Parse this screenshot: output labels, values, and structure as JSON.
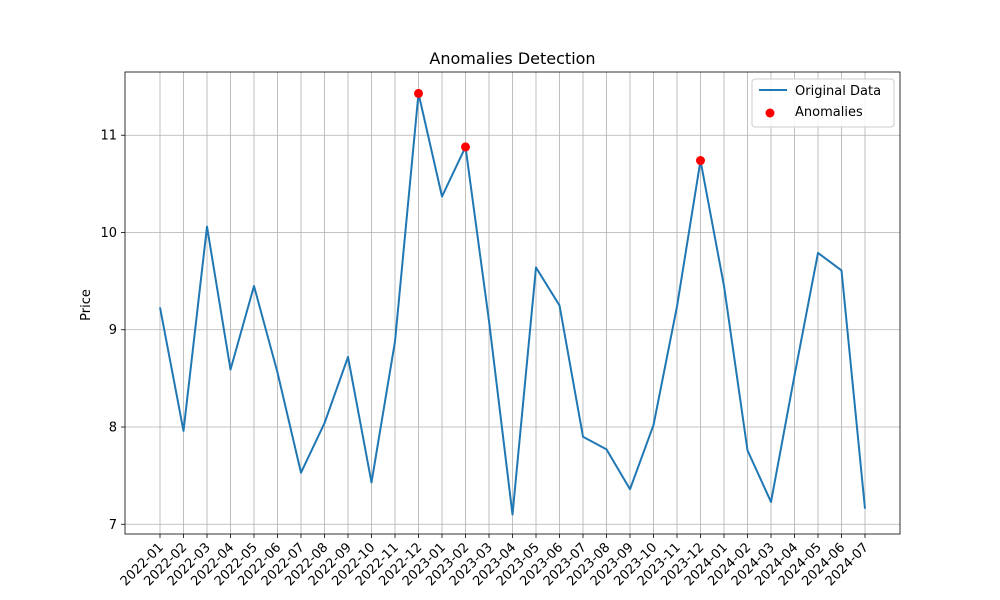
{
  "chart_data": {
    "type": "line",
    "title": "Anomalies Detection",
    "xlabel": "",
    "ylabel": "Price",
    "ylim": [
      6.9,
      11.65
    ],
    "yticks": [
      7,
      8,
      9,
      10,
      11
    ],
    "grid": true,
    "legend_position": "top-right",
    "categories": [
      "2022-01",
      "2022-02",
      "2022-03",
      "2022-04",
      "2022-05",
      "2022-06",
      "2022-07",
      "2022-08",
      "2022-09",
      "2022-10",
      "2022-11",
      "2022-12",
      "2023-01",
      "2023-02",
      "2023-03",
      "2023-04",
      "2023-05",
      "2023-06",
      "2023-07",
      "2023-08",
      "2023-09",
      "2023-10",
      "2023-11",
      "2023-12",
      "2024-01",
      "2024-02",
      "2024-03",
      "2024-04",
      "2024-05",
      "2024-06",
      "2024-07"
    ],
    "series": [
      {
        "name": "Original Data",
        "type": "line",
        "color": "#1f77b4",
        "values": [
          9.23,
          7.96,
          10.06,
          8.59,
          9.45,
          8.56,
          7.53,
          8.04,
          8.72,
          7.43,
          8.88,
          11.43,
          10.37,
          10.88,
          9.09,
          7.1,
          9.64,
          9.25,
          7.9,
          7.77,
          7.36,
          8.02,
          9.24,
          10.74,
          9.45,
          7.76,
          7.23,
          8.53,
          9.79,
          9.61,
          7.16
        ]
      },
      {
        "name": "Anomalies",
        "type": "scatter",
        "color": "#ff0000",
        "points": [
          {
            "x": "2022-12",
            "y": 11.43
          },
          {
            "x": "2023-02",
            "y": 10.88
          },
          {
            "x": "2023-12",
            "y": 10.74
          }
        ]
      }
    ]
  }
}
